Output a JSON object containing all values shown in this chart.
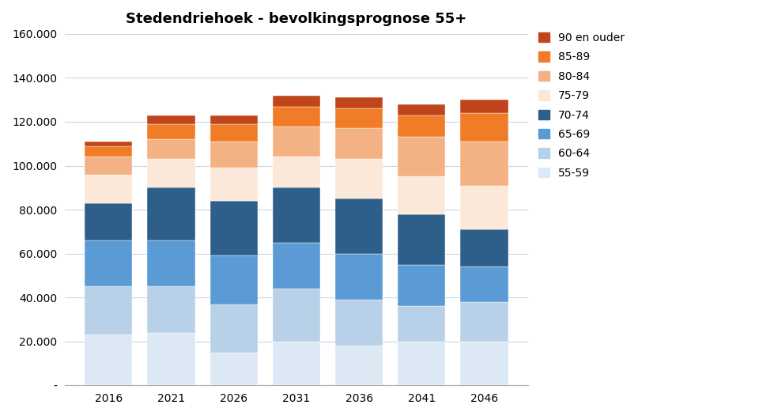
{
  "title": "Stedendriehoek - bevolkingsprognose 55+",
  "years": [
    2016,
    2021,
    2026,
    2031,
    2036,
    2041,
    2046
  ],
  "categories": [
    "55-59",
    "60-64",
    "65-69",
    "70-74",
    "75-79",
    "80-84",
    "85-89",
    "90 en ouder"
  ],
  "colors": [
    "#dce9f5",
    "#b8d0e8",
    "#5b9bd5",
    "#2e5f8a",
    "#fce8d8",
    "#f4b183",
    "#f07c27",
    "#c0451a"
  ],
  "data": {
    "55-59": [
      23000,
      24000,
      15000,
      20000,
      18000,
      20000,
      20000
    ],
    "60-64": [
      22000,
      21000,
      22000,
      24000,
      21000,
      16000,
      18000
    ],
    "65-69": [
      21000,
      21000,
      22000,
      21000,
      21000,
      19000,
      16000
    ],
    "70-74": [
      17000,
      24000,
      25000,
      25000,
      25000,
      23000,
      17000
    ],
    "75-79": [
      13000,
      13000,
      15000,
      14000,
      18000,
      17000,
      20000
    ],
    "80-84": [
      8000,
      9000,
      12000,
      14000,
      14000,
      18000,
      20000
    ],
    "85-89": [
      5000,
      7000,
      8000,
      9000,
      9000,
      10000,
      13000
    ],
    "90 en ouder": [
      2000,
      4000,
      4000,
      5000,
      5000,
      5000,
      6000
    ]
  },
  "ylim": [
    0,
    160000
  ],
  "ytick_step": 20000,
  "figsize": [
    9.6,
    5.26
  ],
  "dpi": 100,
  "bar_width": 3.8,
  "legend_labels": [
    "90 en ouder",
    "85-89",
    "80-84",
    "75-79",
    "70-74",
    "65-69",
    "60-64",
    "55-59"
  ],
  "xlim": [
    2012.5,
    2049.5
  ],
  "background_color": "#ffffff",
  "grid_color": "#c8d8e8",
  "spine_color": "#aaaaaa"
}
